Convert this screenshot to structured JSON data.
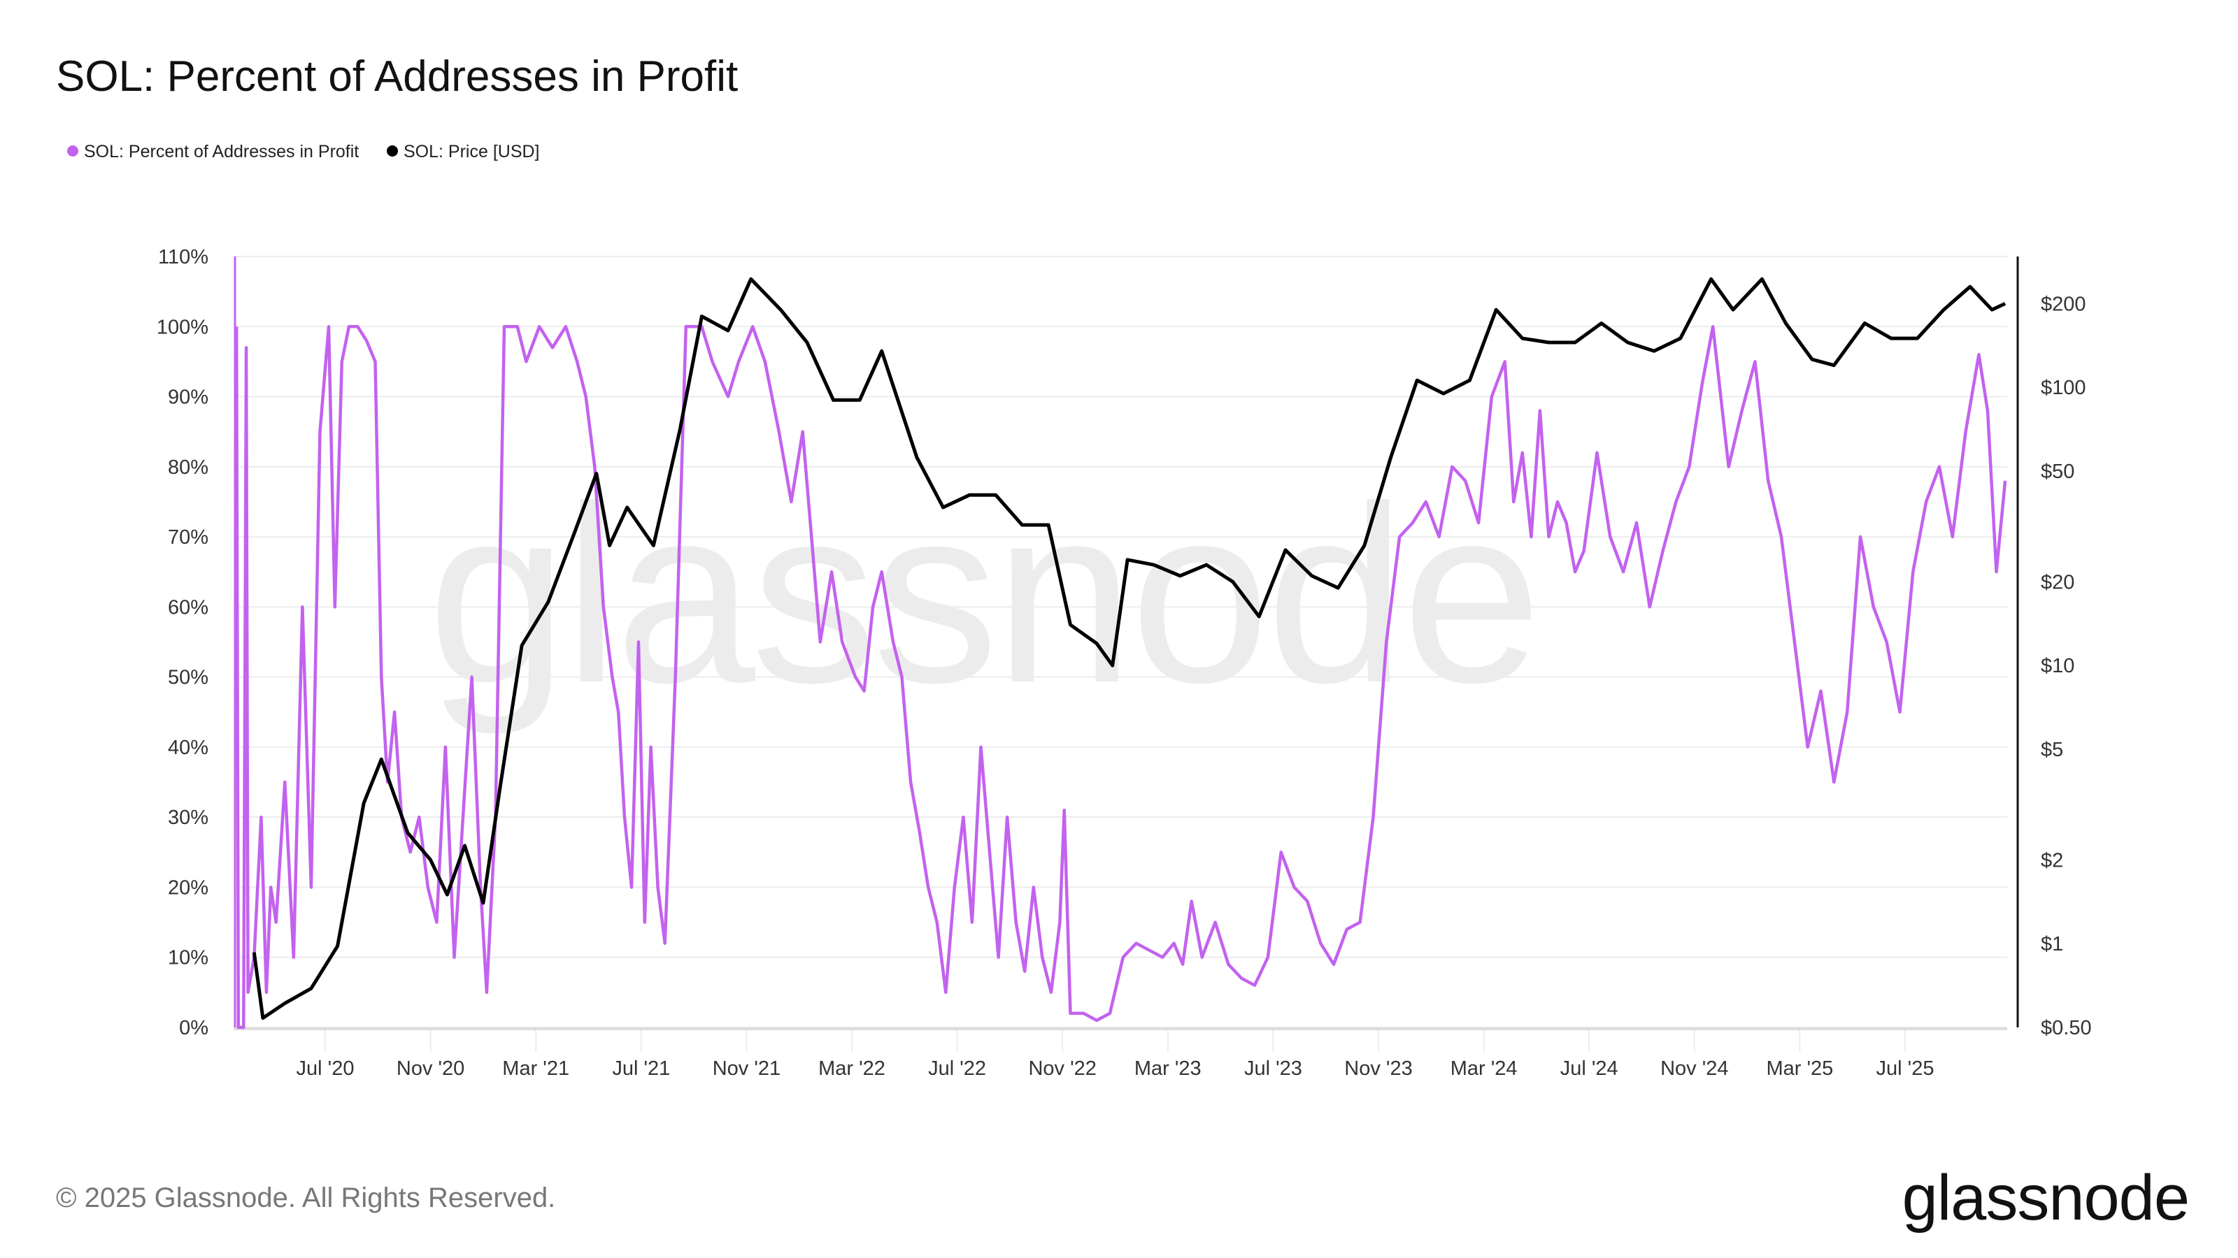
{
  "chart_data": {
    "type": "line",
    "title": "SOL: Percent of Addresses in Profit",
    "legend_position": "top-left",
    "grid": true,
    "x_ticks": [
      "Jul '20",
      "Nov '20",
      "Mar '21",
      "Jul '21",
      "Nov '21",
      "Mar '22",
      "Jul '22",
      "Nov '22",
      "Mar '23",
      "Jul '23",
      "Nov '23",
      "Mar '24",
      "Jul '24",
      "Nov '24",
      "Mar '25",
      "Jul '25"
    ],
    "y_left": {
      "label": "",
      "range": [
        0,
        110
      ],
      "ticks": [
        "0%",
        "10%",
        "20%",
        "30%",
        "40%",
        "50%",
        "60%",
        "70%",
        "80%",
        "90%",
        "100%",
        "110%"
      ]
    },
    "y_right": {
      "label": "",
      "scale": "log",
      "range": [
        0.5,
        300
      ],
      "ticks": [
        {
          "v": 0.5,
          "t": "$0.50"
        },
        {
          "v": 1,
          "t": "$1"
        },
        {
          "v": 2,
          "t": "$2"
        },
        {
          "v": 5,
          "t": "$5"
        },
        {
          "v": 10,
          "t": "$10"
        },
        {
          "v": 20,
          "t": "$20"
        },
        {
          "v": 50,
          "t": "$50"
        },
        {
          "v": 100,
          "t": "$100"
        },
        {
          "v": 200,
          "t": "$200"
        }
      ]
    },
    "series": [
      {
        "name": "SOL: Percent of Addresses in Profit",
        "axis": "left",
        "color": "#c362ef",
        "points": [
          [
            "2020-03-20",
            100
          ],
          [
            "2020-03-22",
            0
          ],
          [
            "2020-03-28",
            0
          ],
          [
            "2020-04-01",
            97
          ],
          [
            "2020-04-03",
            5
          ],
          [
            "2020-04-10",
            10
          ],
          [
            "2020-04-18",
            30
          ],
          [
            "2020-04-24",
            5
          ],
          [
            "2020-04-29",
            20
          ],
          [
            "2020-05-05",
            15
          ],
          [
            "2020-05-15",
            35
          ],
          [
            "2020-05-25",
            10
          ],
          [
            "2020-06-05",
            60
          ],
          [
            "2020-06-15",
            20
          ],
          [
            "2020-06-25",
            85
          ],
          [
            "2020-07-05",
            100
          ],
          [
            "2020-07-12",
            60
          ],
          [
            "2020-07-20",
            95
          ],
          [
            "2020-07-28",
            100
          ],
          [
            "2020-08-08",
            100
          ],
          [
            "2020-08-18",
            98
          ],
          [
            "2020-08-28",
            95
          ],
          [
            "2020-09-05",
            50
          ],
          [
            "2020-09-12",
            35
          ],
          [
            "2020-09-20",
            45
          ],
          [
            "2020-09-28",
            30
          ],
          [
            "2020-10-08",
            25
          ],
          [
            "2020-10-18",
            30
          ],
          [
            "2020-10-28",
            20
          ],
          [
            "2020-11-08",
            15
          ],
          [
            "2020-11-18",
            40
          ],
          [
            "2020-11-28",
            10
          ],
          [
            "2020-12-08",
            30
          ],
          [
            "2020-12-18",
            50
          ],
          [
            "2020-12-28",
            20
          ],
          [
            "2021-01-05",
            5
          ],
          [
            "2021-01-15",
            30
          ],
          [
            "2021-01-25",
            100
          ],
          [
            "2021-02-10",
            100
          ],
          [
            "2021-02-20",
            95
          ],
          [
            "2021-03-05",
            100
          ],
          [
            "2021-03-20",
            97
          ],
          [
            "2021-04-05",
            100
          ],
          [
            "2021-04-18",
            95
          ],
          [
            "2021-04-28",
            90
          ],
          [
            "2021-05-08",
            80
          ],
          [
            "2021-05-18",
            60
          ],
          [
            "2021-05-28",
            50
          ],
          [
            "2021-06-05",
            45
          ],
          [
            "2021-06-12",
            30
          ],
          [
            "2021-06-20",
            20
          ],
          [
            "2021-06-28",
            55
          ],
          [
            "2021-07-05",
            15
          ],
          [
            "2021-07-12",
            40
          ],
          [
            "2021-07-20",
            20
          ],
          [
            "2021-07-28",
            12
          ],
          [
            "2021-08-10",
            50
          ],
          [
            "2021-08-22",
            100
          ],
          [
            "2021-09-10",
            100
          ],
          [
            "2021-09-22",
            95
          ],
          [
            "2021-10-10",
            90
          ],
          [
            "2021-10-22",
            95
          ],
          [
            "2021-11-08",
            100
          ],
          [
            "2021-11-22",
            95
          ],
          [
            "2021-12-08",
            85
          ],
          [
            "2021-12-22",
            75
          ],
          [
            "2022-01-05",
            85
          ],
          [
            "2022-01-15",
            70
          ],
          [
            "2022-01-25",
            55
          ],
          [
            "2022-02-08",
            65
          ],
          [
            "2022-02-20",
            55
          ],
          [
            "2022-03-05",
            50
          ],
          [
            "2022-03-15",
            48
          ],
          [
            "2022-03-25",
            60
          ],
          [
            "2022-04-05",
            65
          ],
          [
            "2022-04-18",
            55
          ],
          [
            "2022-04-28",
            50
          ],
          [
            "2022-05-08",
            35
          ],
          [
            "2022-05-18",
            28
          ],
          [
            "2022-05-28",
            20
          ],
          [
            "2022-06-08",
            15
          ],
          [
            "2022-06-18",
            5
          ],
          [
            "2022-06-28",
            20
          ],
          [
            "2022-07-08",
            30
          ],
          [
            "2022-07-18",
            15
          ],
          [
            "2022-07-28",
            40
          ],
          [
            "2022-08-08",
            25
          ],
          [
            "2022-08-18",
            10
          ],
          [
            "2022-08-28",
            30
          ],
          [
            "2022-09-08",
            15
          ],
          [
            "2022-09-18",
            8
          ],
          [
            "2022-09-28",
            20
          ],
          [
            "2022-10-08",
            10
          ],
          [
            "2022-10-18",
            5
          ],
          [
            "2022-10-28",
            15
          ],
          [
            "2022-11-03",
            31
          ],
          [
            "2022-11-10",
            2
          ],
          [
            "2022-11-25",
            2
          ],
          [
            "2022-12-10",
            1
          ],
          [
            "2022-12-25",
            2
          ],
          [
            "2023-01-10",
            10
          ],
          [
            "2023-01-25",
            12
          ],
          [
            "2023-02-10",
            11
          ],
          [
            "2023-02-25",
            10
          ],
          [
            "2023-03-08",
            12
          ],
          [
            "2023-03-18",
            9
          ],
          [
            "2023-03-28",
            18
          ],
          [
            "2023-04-10",
            10
          ],
          [
            "2023-04-25",
            15
          ],
          [
            "2023-05-10",
            9
          ],
          [
            "2023-05-25",
            7
          ],
          [
            "2023-06-10",
            6
          ],
          [
            "2023-06-25",
            10
          ],
          [
            "2023-07-10",
            25
          ],
          [
            "2023-07-25",
            20
          ],
          [
            "2023-08-10",
            18
          ],
          [
            "2023-08-25",
            12
          ],
          [
            "2023-09-10",
            9
          ],
          [
            "2023-09-25",
            14
          ],
          [
            "2023-10-10",
            15
          ],
          [
            "2023-10-25",
            30
          ],
          [
            "2023-11-10",
            55
          ],
          [
            "2023-11-25",
            70
          ],
          [
            "2023-12-10",
            72
          ],
          [
            "2023-12-25",
            75
          ],
          [
            "2024-01-10",
            70
          ],
          [
            "2024-01-25",
            80
          ],
          [
            "2024-02-10",
            78
          ],
          [
            "2024-02-25",
            72
          ],
          [
            "2024-03-10",
            90
          ],
          [
            "2024-03-25",
            95
          ],
          [
            "2024-04-05",
            75
          ],
          [
            "2024-04-15",
            82
          ],
          [
            "2024-04-25",
            70
          ],
          [
            "2024-05-05",
            88
          ],
          [
            "2024-05-15",
            70
          ],
          [
            "2024-05-25",
            75
          ],
          [
            "2024-06-05",
            72
          ],
          [
            "2024-06-15",
            65
          ],
          [
            "2024-06-25",
            68
          ],
          [
            "2024-07-10",
            82
          ],
          [
            "2024-07-25",
            70
          ],
          [
            "2024-08-10",
            65
          ],
          [
            "2024-08-25",
            72
          ],
          [
            "2024-09-10",
            60
          ],
          [
            "2024-09-25",
            68
          ],
          [
            "2024-10-10",
            75
          ],
          [
            "2024-10-25",
            80
          ],
          [
            "2024-11-10",
            92
          ],
          [
            "2024-11-22",
            100
          ],
          [
            "2024-12-10",
            80
          ],
          [
            "2024-12-25",
            88
          ],
          [
            "2025-01-10",
            95
          ],
          [
            "2025-01-25",
            78
          ],
          [
            "2025-02-10",
            70
          ],
          [
            "2025-02-25",
            55
          ],
          [
            "2025-03-10",
            40
          ],
          [
            "2025-03-25",
            48
          ],
          [
            "2025-04-10",
            35
          ],
          [
            "2025-04-25",
            45
          ],
          [
            "2025-05-10",
            70
          ],
          [
            "2025-05-25",
            60
          ],
          [
            "2025-06-10",
            55
          ],
          [
            "2025-06-25",
            45
          ],
          [
            "2025-07-10",
            65
          ],
          [
            "2025-07-25",
            75
          ],
          [
            "2025-08-10",
            80
          ],
          [
            "2025-08-25",
            70
          ],
          [
            "2025-09-10",
            85
          ],
          [
            "2025-09-25",
            96
          ],
          [
            "2025-10-05",
            88
          ],
          [
            "2025-10-15",
            65
          ],
          [
            "2025-10-25",
            78
          ]
        ]
      },
      {
        "name": "SOL: Price [USD]",
        "axis": "right",
        "color": "#000000",
        "points": [
          [
            "2020-04-10",
            0.93
          ],
          [
            "2020-04-20",
            0.54
          ],
          [
            "2020-05-15",
            0.61
          ],
          [
            "2020-06-15",
            0.69
          ],
          [
            "2020-07-15",
            0.98
          ],
          [
            "2020-08-15",
            3.2
          ],
          [
            "2020-09-05",
            4.6
          ],
          [
            "2020-10-05",
            2.5
          ],
          [
            "2020-11-01",
            2.0
          ],
          [
            "2020-11-20",
            1.5
          ],
          [
            "2020-12-10",
            2.25
          ],
          [
            "2021-01-01",
            1.4
          ],
          [
            "2021-01-20",
            3.6
          ],
          [
            "2021-02-15",
            11.8
          ],
          [
            "2021-03-15",
            16.9
          ],
          [
            "2021-04-15",
            30
          ],
          [
            "2021-05-10",
            49
          ],
          [
            "2021-05-25",
            27
          ],
          [
            "2021-06-15",
            37
          ],
          [
            "2021-07-15",
            27
          ],
          [
            "2021-08-15",
            70
          ],
          [
            "2021-09-10",
            180
          ],
          [
            "2021-10-10",
            160
          ],
          [
            "2021-11-06",
            245
          ],
          [
            "2021-12-10",
            190
          ],
          [
            "2022-01-10",
            145
          ],
          [
            "2022-02-10",
            90
          ],
          [
            "2022-03-10",
            90
          ],
          [
            "2022-04-05",
            135
          ],
          [
            "2022-05-15",
            56
          ],
          [
            "2022-06-15",
            37
          ],
          [
            "2022-07-15",
            41
          ],
          [
            "2022-08-15",
            41
          ],
          [
            "2022-09-15",
            32
          ],
          [
            "2022-10-15",
            32
          ],
          [
            "2022-11-10",
            14
          ],
          [
            "2022-12-10",
            12
          ],
          [
            "2022-12-28",
            10
          ],
          [
            "2023-01-15",
            24
          ],
          [
            "2023-02-15",
            23
          ],
          [
            "2023-03-15",
            21
          ],
          [
            "2023-04-15",
            23
          ],
          [
            "2023-05-15",
            20
          ],
          [
            "2023-06-15",
            15
          ],
          [
            "2023-07-15",
            26
          ],
          [
            "2023-08-15",
            21
          ],
          [
            "2023-09-15",
            19
          ],
          [
            "2023-10-15",
            27
          ],
          [
            "2023-11-15",
            56
          ],
          [
            "2023-12-15",
            106
          ],
          [
            "2024-01-15",
            95
          ],
          [
            "2024-02-15",
            106
          ],
          [
            "2024-03-15",
            190
          ],
          [
            "2024-04-15",
            150
          ],
          [
            "2024-05-15",
            145
          ],
          [
            "2024-06-15",
            145
          ],
          [
            "2024-07-15",
            170
          ],
          [
            "2024-08-15",
            145
          ],
          [
            "2024-09-15",
            135
          ],
          [
            "2024-10-15",
            150
          ],
          [
            "2024-11-20",
            245
          ],
          [
            "2024-12-15",
            190
          ],
          [
            "2025-01-18",
            245
          ],
          [
            "2025-02-15",
            170
          ],
          [
            "2025-03-15",
            126
          ],
          [
            "2025-04-10",
            120
          ],
          [
            "2025-05-15",
            170
          ],
          [
            "2025-06-15",
            150
          ],
          [
            "2025-07-15",
            150
          ],
          [
            "2025-08-15",
            190
          ],
          [
            "2025-09-15",
            230
          ],
          [
            "2025-10-10",
            190
          ],
          [
            "2025-10-25",
            200
          ]
        ]
      }
    ]
  },
  "footer": {
    "copyright": "© 2025 Glassnode. All Rights Reserved.",
    "logo": "glassnode"
  },
  "watermark": "glassnode"
}
